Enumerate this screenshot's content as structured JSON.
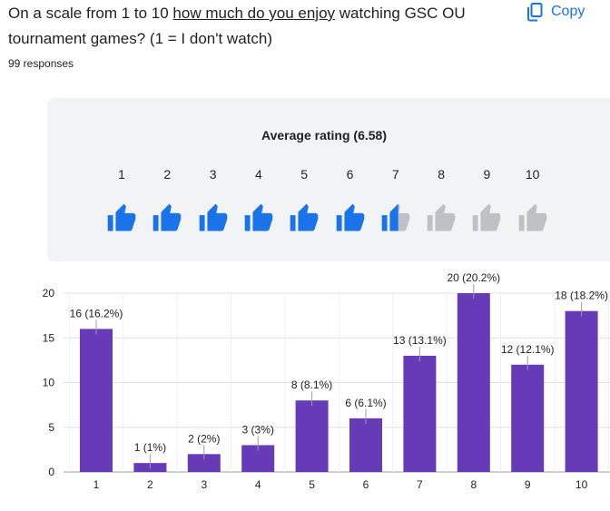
{
  "question": {
    "part1": "On a scale from 1 to 10 ",
    "underlined": "how much do you enjoy",
    "part2": " watching GSC OU tournament games? (1 = I don't watch)"
  },
  "copy_button": {
    "label": "Copy",
    "icon": "copy-icon",
    "color": "#1a73e8"
  },
  "response_count": "99 responses",
  "rating": {
    "average_label": "Average rating (6.58)",
    "average_value": 6.58,
    "scale": [
      "1",
      "2",
      "3",
      "4",
      "5",
      "6",
      "7",
      "8",
      "9",
      "10"
    ],
    "filled_color": "#1a73e8",
    "empty_color": "#bdc1c6",
    "icon": "thumbs-up-icon"
  },
  "chart_data": {
    "type": "bar",
    "categories": [
      "1",
      "2",
      "3",
      "4",
      "5",
      "6",
      "7",
      "8",
      "9",
      "10"
    ],
    "values": [
      16,
      1,
      2,
      3,
      8,
      6,
      13,
      20,
      12,
      18
    ],
    "data_labels": [
      "16 (16.2%)",
      "1 (1%)",
      "2 (2%)",
      "3 (3%)",
      "8 (8.1%)",
      "6 (6.1%)",
      "13 (13.1%)",
      "20 (20.2%)",
      "12 (12.1%)",
      "18 (18.2%)"
    ],
    "y_ticks": [
      "0",
      "5",
      "10",
      "15",
      "20"
    ],
    "ylim": [
      0,
      20
    ],
    "grid": true,
    "bar_color": "#673ab7",
    "title": "",
    "xlabel": "",
    "ylabel": ""
  }
}
